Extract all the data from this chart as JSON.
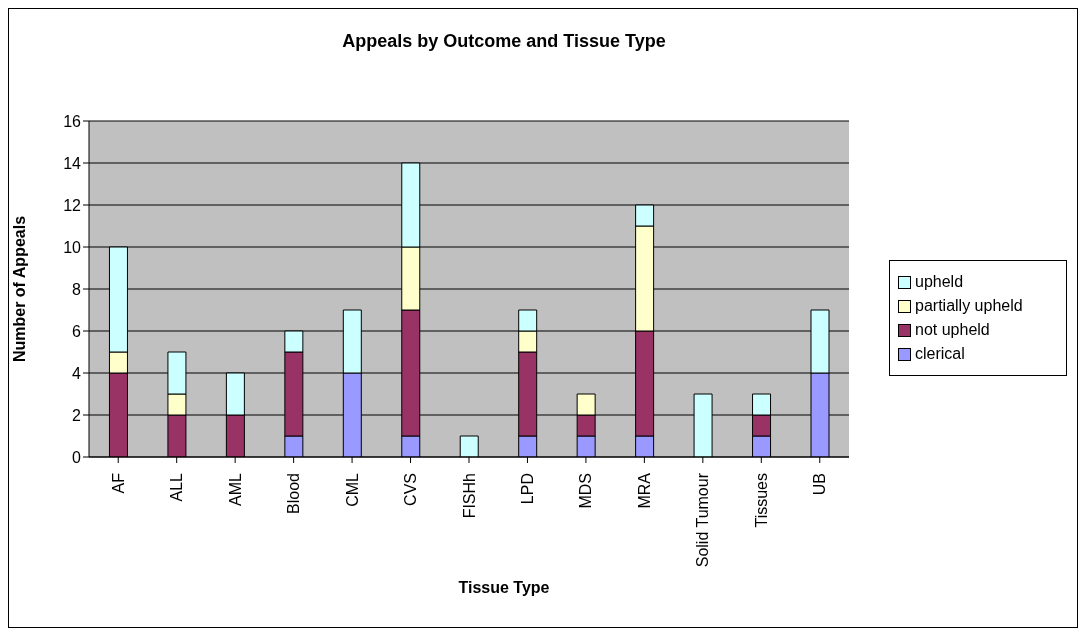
{
  "chart_data": {
    "type": "bar",
    "title": "Appeals by Outcome and Tissue Type",
    "xlabel": "Tissue Type",
    "ylabel": "Number of Appeals",
    "categories": [
      "AF",
      "ALL",
      "AML",
      "Blood",
      "CML",
      "CVS",
      "FISHh",
      "LPD",
      "MDS",
      "MRA",
      "Solid Tumour",
      "Tissues",
      "UB"
    ],
    "stacked": true,
    "series": [
      {
        "name": "clerical",
        "color": "#9999ff",
        "values": [
          0,
          0,
          0,
          1,
          4,
          1,
          0,
          1,
          1,
          1,
          0,
          1,
          4
        ]
      },
      {
        "name": "not upheld",
        "color": "#993366",
        "values": [
          4,
          2,
          2,
          4,
          0,
          6,
          0,
          4,
          1,
          5,
          0,
          1,
          0
        ]
      },
      {
        "name": "partially upheld",
        "color": "#ffffcc",
        "values": [
          1,
          1,
          0,
          0,
          0,
          3,
          0,
          1,
          1,
          5,
          0,
          0,
          0
        ]
      },
      {
        "name": "upheld",
        "color": "#ccffff",
        "values": [
          5,
          2,
          2,
          1,
          3,
          4,
          1,
          1,
          0,
          1,
          3,
          1,
          3
        ]
      }
    ],
    "ylim": [
      0,
      16
    ],
    "yticks": [
      0,
      2,
      4,
      6,
      8,
      10,
      12,
      14,
      16
    ],
    "grid": "y",
    "legend": "right"
  }
}
